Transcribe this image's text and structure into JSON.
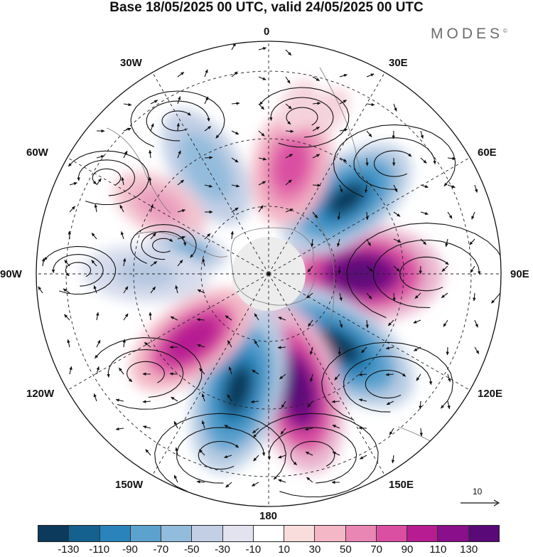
{
  "title": "Base 18/05/2025 00 UTC, valid 24/05/2025 00 UTC",
  "brand": "MODES",
  "brand_mark": "©",
  "longitude_labels": {
    "lon_0": "0",
    "lon_30e": "30E",
    "lon_60e": "60E",
    "lon_90e": "90E",
    "lon_120e": "120E",
    "lon_150e": "150E",
    "lon_180": "180",
    "lon_150w": "150W",
    "lon_120w": "120W",
    "lon_90w": "90W",
    "lon_60w": "60W",
    "lon_30w": "30W"
  },
  "legend": {
    "colors": [
      "#0c3a5c",
      "#14618f",
      "#2a84bb",
      "#5ba2cf",
      "#93bbdc",
      "#c2cfe5",
      "#e3e3f0",
      "#ffffff",
      "#f9dcdc",
      "#f3b7c6",
      "#ea86b4",
      "#da4fa2",
      "#b71c92",
      "#8a0f8a",
      "#5a0a78"
    ],
    "tick_labels": [
      "-130",
      "-110",
      "-90",
      "-70",
      "-50",
      "-30",
      "-10",
      "10",
      "30",
      "50",
      "70",
      "90",
      "110",
      "130"
    ]
  },
  "reference_vector": {
    "label": "10"
  }
}
